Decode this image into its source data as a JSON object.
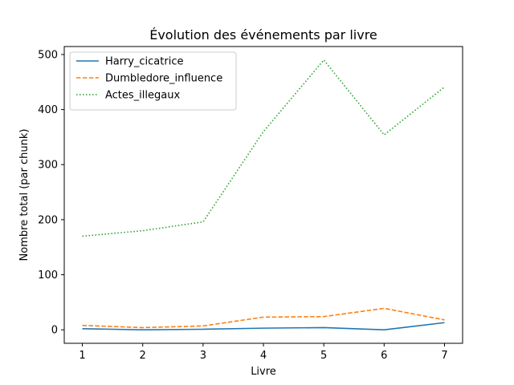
{
  "chart_data": {
    "type": "line",
    "title": "Évolution des événements par livre",
    "xlabel": "Livre",
    "ylabel": "Nombre total (par chunk)",
    "x": [
      1,
      2,
      3,
      4,
      5,
      6,
      7
    ],
    "xlim": [
      0.7,
      7.3
    ],
    "ylim": [
      -24.5,
      514.5
    ],
    "xticks": [
      "1",
      "2",
      "3",
      "4",
      "5",
      "6",
      "7"
    ],
    "yticks": [
      0,
      100,
      200,
      300,
      400,
      500
    ],
    "grid": false,
    "legend_position": "top-left",
    "series": [
      {
        "name": "Harry_cicatrice",
        "values": [
          2,
          0,
          1,
          3,
          4,
          0,
          13
        ],
        "color": "#1f77b4",
        "dash": "solid"
      },
      {
        "name": "Dumbledore_influence",
        "values": [
          8,
          4,
          7,
          23,
          24,
          39,
          18
        ],
        "color": "#ff7f0e",
        "dash": "dashed"
      },
      {
        "name": "Actes_illegaux",
        "values": [
          170,
          180,
          196,
          360,
          490,
          354,
          441
        ],
        "color": "#2ca02c",
        "dash": "dotted"
      }
    ]
  }
}
